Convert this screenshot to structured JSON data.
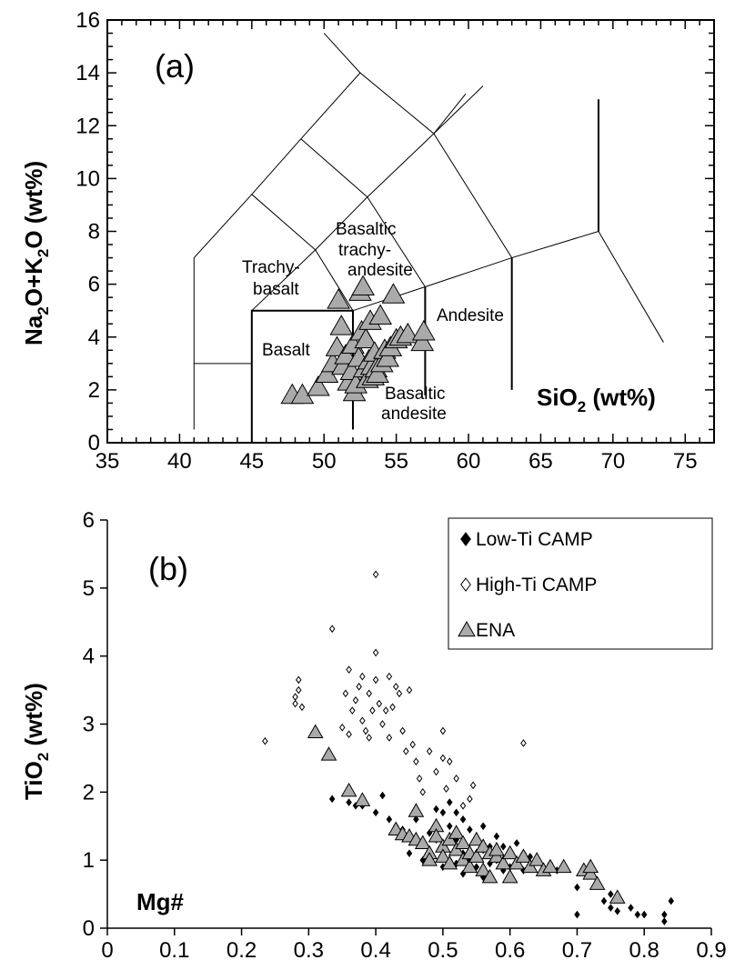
{
  "chart_data": [
    {
      "panel": "(a)",
      "type": "scatter",
      "xlabel": "SiO2 (wt%)",
      "ylabel": "Na2O+K2O (wt%)",
      "xlim": [
        35,
        77
      ],
      "ylim": [
        0,
        16
      ],
      "xticks": [
        "35",
        "40",
        "45",
        "50",
        "55",
        "60",
        "65",
        "70",
        "75"
      ],
      "yticks": [
        "0",
        "2",
        "4",
        "6",
        "8",
        "10",
        "12",
        "14",
        "16"
      ],
      "field_labels": {
        "trachybasalt_1": "Trachy-",
        "trachybasalt_2": "basalt",
        "bta_1": "Basaltic",
        "bta_2": "trachy-",
        "bta_3": "andesite",
        "basalt": "Basalt",
        "andesite": "Andesite",
        "ba_1": "Basaltic",
        "ba_2": "andesite"
      },
      "series": [
        {
          "name": "ENA",
          "marker": "gray-triangle",
          "points": [
            [
              47.8,
              1.8
            ],
            [
              48.5,
              1.8
            ],
            [
              49.6,
              2.1
            ],
            [
              50.2,
              2.6
            ],
            [
              50.6,
              3.0
            ],
            [
              50.9,
              3.6
            ],
            [
              51.0,
              5.4
            ],
            [
              51.2,
              4.4
            ],
            [
              51.3,
              2.9
            ],
            [
              51.5,
              3.3
            ],
            [
              51.7,
              2.3
            ],
            [
              51.9,
              2.7
            ],
            [
              52.0,
              3.7
            ],
            [
              52.1,
              1.9
            ],
            [
              52.2,
              2.2
            ],
            [
              52.4,
              3.2
            ],
            [
              52.5,
              5.7
            ],
            [
              52.6,
              4.2
            ],
            [
              52.7,
              5.9
            ],
            [
              52.8,
              2.8
            ],
            [
              52.9,
              3.9
            ],
            [
              53.0,
              2.4
            ],
            [
              53.1,
              3.1
            ],
            [
              53.2,
              4.6
            ],
            [
              53.3,
              2.9
            ],
            [
              53.4,
              2.5
            ],
            [
              53.5,
              3.4
            ],
            [
              53.6,
              2.8
            ],
            [
              53.7,
              2.6
            ],
            [
              53.9,
              4.8
            ],
            [
              54.0,
              3.0
            ],
            [
              54.2,
              3.5
            ],
            [
              54.4,
              3.2
            ],
            [
              54.6,
              3.6
            ],
            [
              54.8,
              5.6
            ],
            [
              55.0,
              3.9
            ],
            [
              55.3,
              4.0
            ],
            [
              55.8,
              4.1
            ],
            [
              56.8,
              3.8
            ],
            [
              56.9,
              4.2
            ]
          ]
        }
      ]
    },
    {
      "panel": "(b)",
      "type": "scatter",
      "xlabel": "Mg#",
      "ylabel": "TiO2 (wt%)",
      "xlim": [
        0,
        0.9
      ],
      "ylim": [
        0,
        6
      ],
      "xticks": [
        "0",
        "0.1",
        "0.2",
        "0.3",
        "0.4",
        "0.5",
        "0.6",
        "0.7",
        "0.8",
        "0.9"
      ],
      "yticks": [
        "0",
        "1",
        "2",
        "3",
        "4",
        "5",
        "6"
      ],
      "legend": {
        "position": "top-right",
        "entries": [
          "Low-Ti CAMP",
          "High-Ti CAMP",
          "ENA"
        ]
      },
      "series": [
        {
          "name": "Low-Ti CAMP",
          "marker": "filled-diamond",
          "points": [
            [
              0.335,
              1.9
            ],
            [
              0.36,
              1.85
            ],
            [
              0.37,
              1.8
            ],
            [
              0.38,
              1.8
            ],
            [
              0.4,
              1.7
            ],
            [
              0.41,
              1.95
            ],
            [
              0.42,
              1.6
            ],
            [
              0.43,
              1.5
            ],
            [
              0.44,
              1.45
            ],
            [
              0.45,
              1.35
            ],
            [
              0.45,
              1.1
            ],
            [
              0.46,
              1.6
            ],
            [
              0.47,
              1.25
            ],
            [
              0.47,
              1.0
            ],
            [
              0.48,
              1.4
            ],
            [
              0.49,
              1.75
            ],
            [
              0.49,
              1.3
            ],
            [
              0.5,
              1.7
            ],
            [
              0.5,
              1.2
            ],
            [
              0.5,
              0.9
            ],
            [
              0.51,
              1.85
            ],
            [
              0.51,
              1.5
            ],
            [
              0.51,
              1.0
            ],
            [
              0.52,
              1.7
            ],
            [
              0.52,
              1.3
            ],
            [
              0.52,
              0.95
            ],
            [
              0.53,
              1.6
            ],
            [
              0.53,
              1.1
            ],
            [
              0.53,
              0.8
            ],
            [
              0.54,
              1.45
            ],
            [
              0.54,
              1.0
            ],
            [
              0.55,
              1.3
            ],
            [
              0.55,
              0.9
            ],
            [
              0.56,
              1.5
            ],
            [
              0.56,
              1.15
            ],
            [
              0.56,
              0.75
            ],
            [
              0.57,
              1.2
            ],
            [
              0.57,
              0.95
            ],
            [
              0.58,
              1.35
            ],
            [
              0.58,
              1.0
            ],
            [
              0.59,
              1.2
            ],
            [
              0.59,
              0.85
            ],
            [
              0.6,
              1.1
            ],
            [
              0.6,
              0.9
            ],
            [
              0.61,
              1.25
            ],
            [
              0.61,
              0.95
            ],
            [
              0.62,
              1.1
            ],
            [
              0.62,
              0.85
            ],
            [
              0.63,
              1.05
            ],
            [
              0.64,
              1.0
            ],
            [
              0.65,
              0.9
            ],
            [
              0.66,
              0.95
            ],
            [
              0.67,
              0.85
            ],
            [
              0.7,
              0.6
            ],
            [
              0.7,
              0.2
            ],
            [
              0.72,
              0.8
            ],
            [
              0.74,
              0.4
            ],
            [
              0.75,
              0.3
            ],
            [
              0.75,
              0.5
            ],
            [
              0.76,
              0.25
            ],
            [
              0.78,
              0.3
            ],
            [
              0.79,
              0.2
            ],
            [
              0.8,
              0.2
            ],
            [
              0.83,
              0.2
            ],
            [
              0.83,
              0.1
            ],
            [
              0.84,
              0.4
            ]
          ]
        },
        {
          "name": "High-Ti CAMP",
          "marker": "open-diamond",
          "points": [
            [
              0.235,
              2.75
            ],
            [
              0.28,
              3.3
            ],
            [
              0.28,
              3.4
            ],
            [
              0.285,
              3.5
            ],
            [
              0.285,
              3.65
            ],
            [
              0.29,
              3.25
            ],
            [
              0.335,
              4.4
            ],
            [
              0.35,
              2.95
            ],
            [
              0.355,
              3.45
            ],
            [
              0.36,
              3.8
            ],
            [
              0.36,
              2.85
            ],
            [
              0.365,
              3.2
            ],
            [
              0.37,
              3.35
            ],
            [
              0.375,
              3.55
            ],
            [
              0.38,
              3.7
            ],
            [
              0.38,
              3.05
            ],
            [
              0.385,
              2.9
            ],
            [
              0.39,
              3.45
            ],
            [
              0.39,
              2.8
            ],
            [
              0.395,
              3.2
            ],
            [
              0.4,
              5.2
            ],
            [
              0.4,
              4.05
            ],
            [
              0.4,
              3.65
            ],
            [
              0.405,
              3.3
            ],
            [
              0.41,
              3.0
            ],
            [
              0.415,
              3.2
            ],
            [
              0.42,
              3.7
            ],
            [
              0.42,
              2.8
            ],
            [
              0.425,
              3.25
            ],
            [
              0.43,
              3.55
            ],
            [
              0.435,
              3.45
            ],
            [
              0.44,
              2.9
            ],
            [
              0.445,
              2.6
            ],
            [
              0.45,
              3.5
            ],
            [
              0.455,
              2.7
            ],
            [
              0.46,
              2.45
            ],
            [
              0.465,
              2.2
            ],
            [
              0.47,
              2.0
            ],
            [
              0.48,
              2.6
            ],
            [
              0.49,
              2.3
            ],
            [
              0.5,
              2.9
            ],
            [
              0.5,
              2.5
            ],
            [
              0.505,
              2.05
            ],
            [
              0.51,
              2.45
            ],
            [
              0.52,
              2.2
            ],
            [
              0.53,
              1.8
            ],
            [
              0.54,
              1.9
            ],
            [
              0.545,
              2.1
            ],
            [
              0.62,
              2.72
            ]
          ]
        },
        {
          "name": "ENA",
          "marker": "gray-triangle",
          "points": [
            [
              0.31,
              2.88
            ],
            [
              0.33,
              2.55
            ],
            [
              0.36,
              2.02
            ],
            [
              0.38,
              1.88
            ],
            [
              0.43,
              1.45
            ],
            [
              0.44,
              1.38
            ],
            [
              0.45,
              1.35
            ],
            [
              0.46,
              1.72
            ],
            [
              0.46,
              1.3
            ],
            [
              0.47,
              1.25
            ],
            [
              0.48,
              1.1
            ],
            [
              0.48,
              1.0
            ],
            [
              0.49,
              1.5
            ],
            [
              0.49,
              1.35
            ],
            [
              0.5,
              1.2
            ],
            [
              0.5,
              1.05
            ],
            [
              0.51,
              1.3
            ],
            [
              0.51,
              0.95
            ],
            [
              0.52,
              1.15
            ],
            [
              0.52,
              1.4
            ],
            [
              0.53,
              1.0
            ],
            [
              0.53,
              1.25
            ],
            [
              0.54,
              1.1
            ],
            [
              0.54,
              0.9
            ],
            [
              0.55,
              1.3
            ],
            [
              0.55,
              1.05
            ],
            [
              0.56,
              1.2
            ],
            [
              0.56,
              0.85
            ],
            [
              0.57,
              1.1
            ],
            [
              0.57,
              0.75
            ],
            [
              0.58,
              1.05
            ],
            [
              0.58,
              1.15
            ],
            [
              0.59,
              0.95
            ],
            [
              0.6,
              1.1
            ],
            [
              0.6,
              0.75
            ],
            [
              0.61,
              0.95
            ],
            [
              0.62,
              1.05
            ],
            [
              0.63,
              0.9
            ],
            [
              0.64,
              1.0
            ],
            [
              0.65,
              0.85
            ],
            [
              0.66,
              0.9
            ],
            [
              0.68,
              0.9
            ],
            [
              0.71,
              0.85
            ],
            [
              0.72,
              0.8
            ],
            [
              0.72,
              0.9
            ],
            [
              0.73,
              0.65
            ],
            [
              0.76,
              0.45
            ]
          ]
        }
      ]
    }
  ]
}
